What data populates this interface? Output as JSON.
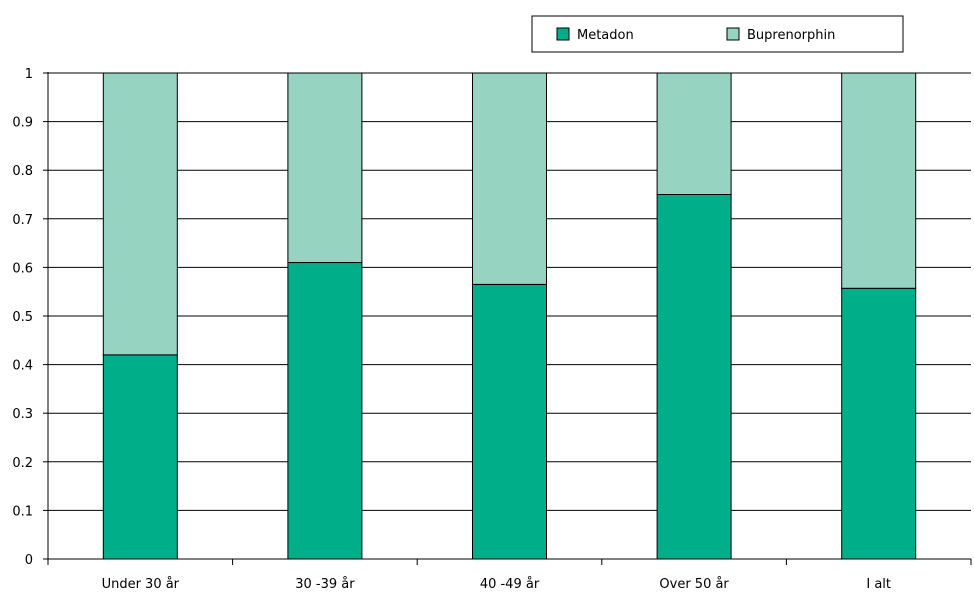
{
  "chart_data": {
    "type": "bar",
    "stacked": true,
    "categories": [
      "Under 30 år",
      "30  -39 år",
      "40  -49 år",
      "Over 50 år",
      "I alt"
    ],
    "series": [
      {
        "name": "Metadon",
        "color": "#00af8a",
        "values": [
          0.42,
          0.61,
          0.565,
          0.75,
          0.557
        ]
      },
      {
        "name": "Buprenorphin",
        "color": "#96d3c1",
        "values": [
          0.58,
          0.39,
          0.435,
          0.25,
          0.443
        ]
      }
    ],
    "y_ticks": [
      "0",
      "0.1",
      "0.2",
      "0.3",
      "0.4",
      "0.5",
      "0.6",
      "0.7",
      "0.8",
      "0.9",
      "1"
    ],
    "ylim": [
      0,
      1
    ],
    "grid": true,
    "legend_position": "top-right",
    "title": "",
    "xlabel": "",
    "ylabel": ""
  }
}
